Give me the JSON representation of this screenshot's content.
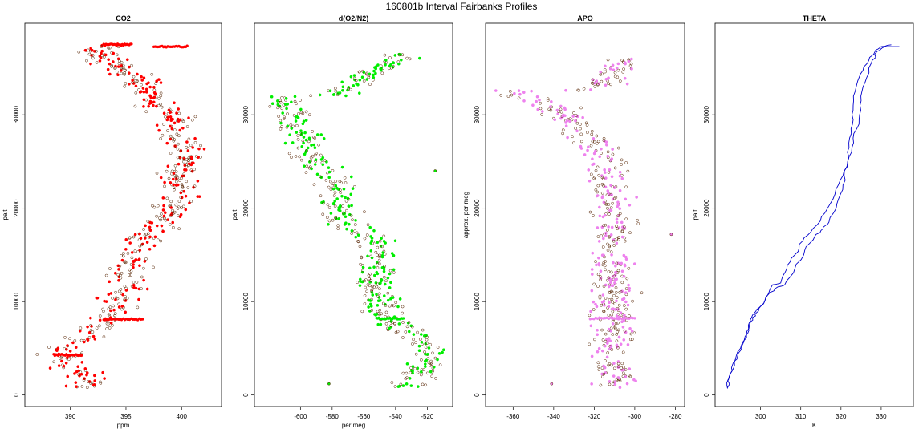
{
  "figure": {
    "title": "160801b   Interval Fairbanks Profiles"
  },
  "chart_data": [
    {
      "type": "scatter",
      "title": "CO2",
      "xlabel": "ppm",
      "ylabel": "palt",
      "color": "#ff0000",
      "xlim": [
        386.2,
        403.3
      ],
      "ylim": [
        -200,
        39200
      ],
      "xticks": [
        390,
        395,
        400
      ],
      "yticks": [
        0,
        10000,
        20000,
        30000
      ],
      "profile": [
        [
          391.5,
          800
        ],
        [
          391.2,
          2200
        ],
        [
          389.8,
          3400
        ],
        [
          389.0,
          4400
        ],
        [
          390.3,
          5600
        ],
        [
          391.8,
          6800
        ],
        [
          393.2,
          8100
        ],
        [
          394.2,
          9500
        ],
        [
          394.6,
          11500
        ],
        [
          395.2,
          13500
        ],
        [
          395.8,
          15800
        ],
        [
          397.0,
          17300
        ],
        [
          398.5,
          19000
        ],
        [
          399.8,
          21000
        ],
        [
          399.9,
          23500
        ],
        [
          400.3,
          25500
        ],
        [
          400.0,
          27500
        ],
        [
          399.5,
          29500
        ],
        [
          398.0,
          31000
        ],
        [
          397.0,
          32500
        ],
        [
          396.5,
          33800
        ],
        [
          394.5,
          35000
        ],
        [
          393.0,
          36000
        ],
        [
          392.0,
          36800
        ],
        [
          393.5,
          37500
        ]
      ],
      "spread": 0.9,
      "extras": [
        {
          "kind": "hline",
          "y": 37300,
          "x1": 397.5,
          "x2": 400.5
        },
        {
          "kind": "hline",
          "y": 37500,
          "x1": 393.0,
          "x2": 395.5
        },
        {
          "kind": "hline",
          "y": 8100,
          "x1": 393.0,
          "x2": 396.5
        },
        {
          "kind": "hline",
          "y": 4300,
          "x1": 388.5,
          "x2": 391.0
        }
      ]
    },
    {
      "type": "scatter",
      "title": "d(O2/N2)",
      "xlabel": "per meg",
      "ylabel": "palt",
      "color": "#00ee00",
      "xlim": [
        -627,
        -506
      ],
      "ylim": [
        -200,
        39200
      ],
      "xticks": [
        -600,
        -580,
        -560,
        -540,
        -520
      ],
      "yticks": [
        0,
        10000,
        20000,
        30000
      ],
      "profile": [
        [
          -535,
          800
        ],
        [
          -525,
          2500
        ],
        [
          -515,
          4400
        ],
        [
          -525,
          6000
        ],
        [
          -540,
          7500
        ],
        [
          -545,
          8300
        ],
        [
          -550,
          10000
        ],
        [
          -553,
          12500
        ],
        [
          -550,
          15500
        ],
        [
          -557,
          17000
        ],
        [
          -572,
          18500
        ],
        [
          -578,
          20500
        ],
        [
          -576,
          22500
        ],
        [
          -588,
          24500
        ],
        [
          -595,
          26000
        ],
        [
          -598,
          28000
        ],
        [
          -605,
          30000
        ],
        [
          -610,
          32000
        ],
        [
          -590,
          31500
        ],
        [
          -575,
          32500
        ],
        [
          -560,
          34000
        ],
        [
          -545,
          35500
        ],
        [
          -535,
          36500
        ]
      ],
      "spread": 6.0,
      "extras": [
        {
          "kind": "hline",
          "y": 8200,
          "x1": -552,
          "x2": -535
        },
        {
          "kind": "point",
          "x": -515,
          "y": 24000
        },
        {
          "kind": "point",
          "x": -582,
          "y": 1200
        }
      ]
    },
    {
      "type": "scatter",
      "title": "APO",
      "xlabel": "",
      "ylabel": "approx. per meg",
      "color": "#ee82ee",
      "xlim": [
        -372,
        -277
      ],
      "ylim": [
        -200,
        39200
      ],
      "xticks": [
        -360,
        -340,
        -320,
        -300,
        -280
      ],
      "yticks": [
        0,
        10000,
        20000,
        30000
      ],
      "profile": [
        [
          -310,
          800
        ],
        [
          -312,
          5000
        ],
        [
          -310,
          10000
        ],
        [
          -312,
          15000
        ],
        [
          -310,
          20000
        ],
        [
          -316,
          25000
        ],
        [
          -325,
          28500
        ],
        [
          -338,
          30500
        ],
        [
          -352,
          31800
        ],
        [
          -362,
          32600
        ],
        [
          -335,
          32000
        ],
        [
          -318,
          33000
        ],
        [
          -310,
          34500
        ],
        [
          -306,
          36000
        ]
      ],
      "spread": 5.0,
      "extras": [
        {
          "kind": "hline",
          "y": 8200,
          "x1": -322,
          "x2": -300
        },
        {
          "kind": "point",
          "x": -282,
          "y": 17200
        },
        {
          "kind": "point",
          "x": -341,
          "y": 1200
        }
      ]
    },
    {
      "type": "line",
      "title": "THETA",
      "xlabel": "K",
      "ylabel": "palt",
      "color": "#0000cc",
      "xlim": [
        289.5,
        337.2
      ],
      "ylim": [
        -200,
        39200
      ],
      "xticks": [
        300,
        310,
        320,
        330
      ],
      "yticks": [
        0,
        10000,
        20000,
        30000
      ],
      "lines": [
        [
          [
            291.8,
            700
          ],
          [
            292.2,
            2000
          ],
          [
            293.0,
            3200
          ],
          [
            294.5,
            4500
          ],
          [
            296.0,
            6000
          ],
          [
            297.0,
            7200
          ],
          [
            298.0,
            8300
          ],
          [
            299.5,
            9000
          ],
          [
            301.0,
            10000
          ],
          [
            303.0,
            11800
          ],
          [
            305.0,
            12000
          ],
          [
            306.5,
            13500
          ],
          [
            308.5,
            15000
          ],
          [
            310.5,
            16500
          ],
          [
            313.0,
            17800
          ],
          [
            316.0,
            19500
          ],
          [
            318.5,
            21500
          ],
          [
            320.5,
            23500
          ],
          [
            322.0,
            25500
          ],
          [
            323.0,
            27500
          ],
          [
            324.5,
            29500
          ],
          [
            325.0,
            31500
          ],
          [
            326.0,
            33500
          ],
          [
            327.5,
            35500
          ],
          [
            329.0,
            36800
          ],
          [
            331.0,
            37300
          ],
          [
            334.5,
            37300
          ]
        ],
        [
          [
            291.8,
            800
          ],
          [
            292.5,
            2300
          ],
          [
            293.5,
            3500
          ],
          [
            295.0,
            5000
          ],
          [
            296.5,
            6500
          ],
          [
            297.5,
            7800
          ],
          [
            298.5,
            8800
          ],
          [
            300.0,
            9500
          ],
          [
            302.0,
            10800
          ],
          [
            304.0,
            11500
          ],
          [
            306.0,
            11800
          ],
          [
            308.5,
            13500
          ],
          [
            311.0,
            15500
          ],
          [
            313.5,
            17000
          ],
          [
            315.5,
            17800
          ],
          [
            317.0,
            18500
          ],
          [
            319.0,
            20500
          ],
          [
            320.5,
            22500
          ],
          [
            321.5,
            24500
          ],
          [
            322.0,
            26500
          ],
          [
            322.5,
            28500
          ],
          [
            323.0,
            30500
          ],
          [
            323.5,
            32500
          ],
          [
            324.5,
            34000
          ],
          [
            326.5,
            35500
          ],
          [
            328.5,
            36800
          ],
          [
            330.0,
            37300
          ],
          [
            332.5,
            37500
          ]
        ]
      ]
    }
  ]
}
